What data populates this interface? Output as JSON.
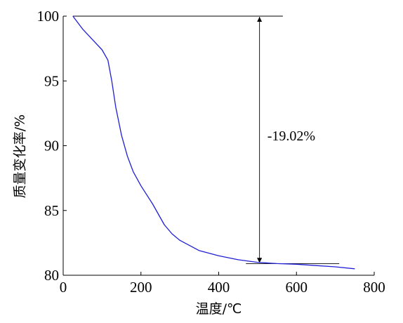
{
  "chart_data": {
    "type": "line",
    "xlabel": "温度/℃",
    "ylabel": "质量变化率/%",
    "xlim": [
      0,
      800
    ],
    "ylim": [
      80,
      100
    ],
    "x_ticks": [
      0,
      200,
      400,
      600,
      800
    ],
    "y_ticks": [
      80,
      85,
      90,
      95,
      100
    ],
    "grid": false,
    "series": [
      {
        "color": "#1f1fd6",
        "x": [
          25,
          50,
          75,
          100,
          115,
          125,
          135,
          150,
          165,
          180,
          200,
          230,
          260,
          280,
          300,
          350,
          400,
          450,
          500,
          550,
          600,
          650,
          700,
          750
        ],
        "y": [
          100.0,
          99.0,
          98.2,
          97.4,
          96.6,
          95.0,
          93.0,
          90.8,
          89.2,
          88.0,
          86.9,
          85.5,
          83.9,
          83.2,
          82.7,
          81.9,
          81.5,
          81.2,
          81.0,
          80.9,
          80.85,
          80.75,
          80.65,
          80.5
        ]
      }
    ],
    "reference_lines": [
      {
        "name": "top",
        "y": 100,
        "x_start": 25,
        "x_end": 565
      },
      {
        "name": "bottom",
        "y": 80.9,
        "x_start": 470,
        "x_end": 710
      }
    ],
    "arrow": {
      "x": 505,
      "y_from": 100,
      "y_to": 80.9
    },
    "annotation": {
      "text": "-19.02%",
      "x": 525,
      "y": 90.4
    }
  }
}
